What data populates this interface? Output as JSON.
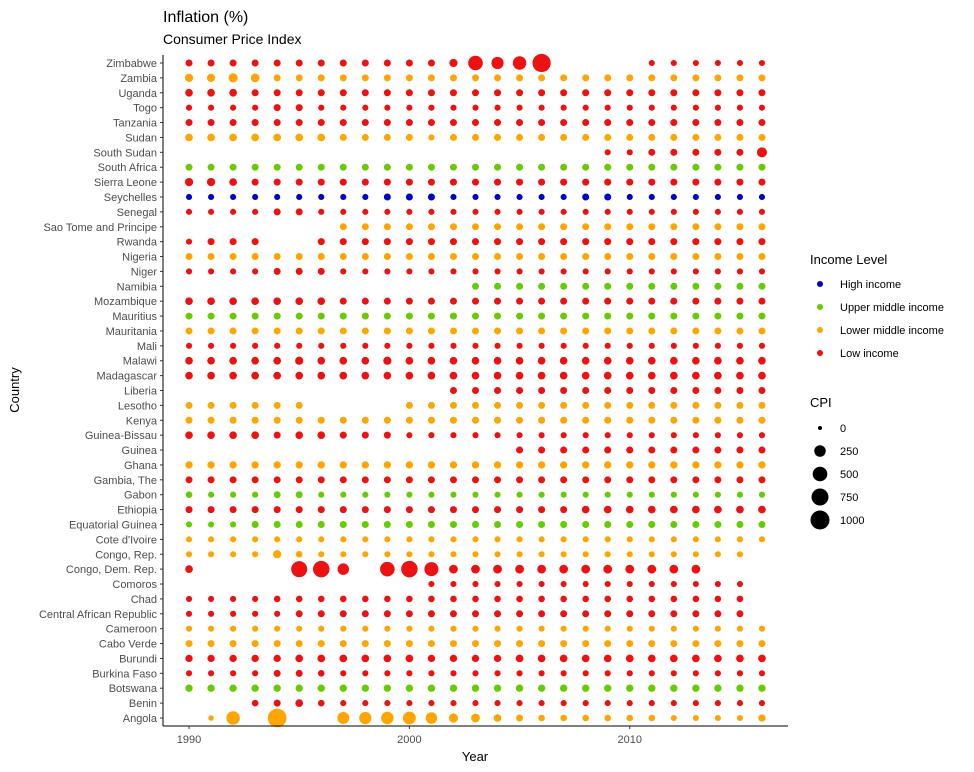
{
  "chart_data": {
    "type": "scatter",
    "title": "Inflation (%)",
    "subtitle": "Consumer Price Index",
    "xlabel": "Year",
    "ylabel": "Country",
    "xlim": [
      1989,
      2017
    ],
    "x_ticks": [
      1990,
      2000,
      2010
    ],
    "years": [
      1990,
      1991,
      1992,
      1993,
      1994,
      1995,
      1996,
      1997,
      1998,
      1999,
      2000,
      2001,
      2002,
      2003,
      2004,
      2005,
      2006,
      2007,
      2008,
      2009,
      2010,
      2011,
      2012,
      2013,
      2014,
      2015,
      2016
    ],
    "countries": [
      "Angola",
      "Benin",
      "Botswana",
      "Burkina Faso",
      "Burundi",
      "Cabo Verde",
      "Cameroon",
      "Central African Republic",
      "Chad",
      "Comoros",
      "Congo, Dem. Rep.",
      "Congo, Rep.",
      "Cote d'Ivoire",
      "Equatorial Guinea",
      "Ethiopia",
      "Gabon",
      "Gambia, The",
      "Ghana",
      "Guinea",
      "Guinea-Bissau",
      "Kenya",
      "Lesotho",
      "Liberia",
      "Madagascar",
      "Malawi",
      "Mali",
      "Mauritania",
      "Mauritius",
      "Mozambique",
      "Namibia",
      "Niger",
      "Nigeria",
      "Rwanda",
      "Sao Tome and Principe",
      "Senegal",
      "Seychelles",
      "Sierra Leone",
      "South Africa",
      "South Sudan",
      "Sudan",
      "Tanzania",
      "Togo",
      "Uganda",
      "Zambia",
      "Zimbabwe"
    ],
    "income_colors": {
      "High income": "#0000cc",
      "Upper middle income": "#66cc00",
      "Lower middle income": "#ffa500",
      "Low income": "#ee1111"
    },
    "income_by_country": {
      "Angola": "Lower middle income",
      "Benin": "Low income",
      "Botswana": "Upper middle income",
      "Burkina Faso": "Low income",
      "Burundi": "Low income",
      "Cabo Verde": "Lower middle income",
      "Cameroon": "Lower middle income",
      "Central African Republic": "Low income",
      "Chad": "Low income",
      "Comoros": "Low income",
      "Congo, Dem. Rep.": "Low income",
      "Congo, Rep.": "Lower middle income",
      "Cote d'Ivoire": "Lower middle income",
      "Equatorial Guinea": "Upper middle income",
      "Ethiopia": "Low income",
      "Gabon": "Upper middle income",
      "Gambia, The": "Low income",
      "Ghana": "Lower middle income",
      "Guinea": "Low income",
      "Guinea-Bissau": "Low income",
      "Kenya": "Lower middle income",
      "Lesotho": "Lower middle income",
      "Liberia": "Low income",
      "Madagascar": "Low income",
      "Malawi": "Low income",
      "Mali": "Low income",
      "Mauritania": "Lower middle income",
      "Mauritius": "Upper middle income",
      "Mozambique": "Low income",
      "Namibia": "Upper middle income",
      "Niger": "Low income",
      "Nigeria": "Lower middle income",
      "Rwanda": "Low income",
      "Sao Tome and Principe": "Lower middle income",
      "Senegal": "Low income",
      "Seychelles": "High income",
      "Sierra Leone": "Low income",
      "South Africa": "Upper middle income",
      "South Sudan": "Low income",
      "Sudan": "Lower middle income",
      "Tanzania": "Low income",
      "Togo": "Low income",
      "Uganda": "Low income",
      "Zambia": "Lower middle income",
      "Zimbabwe": "Low income"
    },
    "cpi_series": {
      "Angola": [
        null,
        10,
        400,
        null,
        950,
        null,
        null,
        280,
        300,
        320,
        350,
        250,
        120,
        100,
        60,
        40,
        30,
        30,
        30,
        30,
        30,
        30,
        20,
        20,
        20,
        20,
        50
      ],
      "Benin": [
        null,
        null,
        null,
        30,
        40,
        60,
        30,
        20,
        20,
        20,
        20,
        20,
        20,
        20,
        20,
        20,
        20,
        20,
        20,
        20,
        20,
        20,
        20,
        20,
        20,
        20,
        20
      ],
      "Botswana": [
        50,
        50,
        50,
        50,
        50,
        50,
        50,
        50,
        50,
        50,
        50,
        50,
        50,
        50,
        50,
        50,
        50,
        50,
        50,
        50,
        50,
        50,
        50,
        50,
        50,
        50,
        50
      ],
      "Burkina Faso": [
        20,
        20,
        20,
        20,
        40,
        40,
        30,
        20,
        20,
        20,
        20,
        20,
        20,
        20,
        20,
        20,
        20,
        20,
        20,
        20,
        20,
        20,
        20,
        20,
        20,
        20,
        20
      ],
      "Burundi": [
        50,
        50,
        50,
        50,
        50,
        60,
        60,
        60,
        60,
        60,
        60,
        50,
        50,
        50,
        50,
        60,
        60,
        60,
        60,
        60,
        60,
        60,
        60,
        60,
        60,
        60,
        60
      ],
      "Cabo Verde": [
        40,
        40,
        40,
        40,
        40,
        40,
        40,
        40,
        40,
        40,
        40,
        40,
        40,
        40,
        40,
        40,
        40,
        40,
        40,
        40,
        40,
        40,
        40,
        40,
        40,
        40,
        40
      ],
      "Cameroon": [
        20,
        20,
        20,
        20,
        20,
        20,
        20,
        20,
        20,
        20,
        20,
        20,
        20,
        20,
        20,
        20,
        20,
        20,
        20,
        20,
        20,
        20,
        20,
        20,
        20,
        20,
        20
      ],
      "Central African Republic": [
        20,
        20,
        20,
        20,
        20,
        40,
        40,
        40,
        40,
        40,
        40,
        40,
        40,
        40,
        40,
        40,
        40,
        40,
        40,
        40,
        40,
        40,
        40,
        40,
        40,
        40,
        null
      ],
      "Chad": [
        20,
        20,
        20,
        20,
        30,
        30,
        30,
        30,
        30,
        30,
        30,
        30,
        30,
        30,
        30,
        30,
        30,
        30,
        30,
        30,
        30,
        30,
        30,
        30,
        30,
        30,
        null
      ],
      "Comoros": [
        null,
        null,
        null,
        null,
        null,
        null,
        null,
        null,
        null,
        null,
        null,
        20,
        20,
        20,
        20,
        20,
        20,
        20,
        20,
        20,
        20,
        20,
        20,
        20,
        20,
        20,
        null
      ],
      "Congo, Dem. Rep.": [
        60,
        null,
        null,
        null,
        null,
        650,
        700,
        250,
        null,
        500,
        700,
        450,
        100,
        100,
        100,
        100,
        100,
        100,
        100,
        100,
        100,
        100,
        100,
        100,
        null,
        null,
        null
      ],
      "Congo, Rep.": [
        20,
        20,
        20,
        20,
        80,
        30,
        20,
        20,
        20,
        20,
        20,
        20,
        20,
        20,
        20,
        20,
        20,
        20,
        20,
        20,
        20,
        20,
        20,
        20,
        20,
        20,
        null
      ],
      "Cote d'Ivoire": [
        20,
        20,
        20,
        20,
        20,
        20,
        20,
        20,
        20,
        20,
        20,
        20,
        20,
        20,
        20,
        20,
        20,
        20,
        20,
        20,
        20,
        20,
        20,
        20,
        20,
        20,
        20
      ],
      "Equatorial Guinea": [
        20,
        20,
        20,
        40,
        40,
        40,
        40,
        40,
        40,
        40,
        40,
        40,
        40,
        40,
        40,
        40,
        40,
        40,
        40,
        40,
        40,
        40,
        40,
        40,
        40,
        40,
        40
      ],
      "Ethiopia": [
        40,
        40,
        40,
        40,
        40,
        40,
        40,
        40,
        40,
        40,
        40,
        40,
        40,
        40,
        40,
        40,
        40,
        40,
        60,
        60,
        60,
        60,
        60,
        60,
        60,
        60,
        60
      ],
      "Gabon": [
        30,
        20,
        20,
        20,
        40,
        40,
        20,
        20,
        20,
        20,
        20,
        20,
        20,
        20,
        20,
        20,
        20,
        20,
        20,
        20,
        20,
        20,
        20,
        20,
        20,
        20,
        20
      ],
      "Gambia, The": [
        40,
        40,
        40,
        40,
        40,
        40,
        40,
        40,
        40,
        40,
        40,
        40,
        40,
        40,
        40,
        40,
        40,
        40,
        40,
        40,
        40,
        40,
        40,
        40,
        40,
        40,
        40
      ],
      "Ghana": [
        50,
        50,
        50,
        50,
        50,
        50,
        50,
        50,
        50,
        50,
        50,
        50,
        50,
        50,
        50,
        50,
        50,
        50,
        50,
        50,
        50,
        50,
        50,
        50,
        50,
        50,
        50
      ],
      "Guinea": [
        null,
        null,
        null,
        null,
        null,
        null,
        null,
        null,
        null,
        null,
        null,
        null,
        null,
        null,
        null,
        40,
        40,
        40,
        40,
        40,
        40,
        40,
        40,
        40,
        40,
        40,
        40
      ],
      "Guinea-Bissau": [
        60,
        60,
        60,
        60,
        40,
        60,
        60,
        40,
        40,
        40,
        20,
        20,
        20,
        20,
        20,
        20,
        20,
        20,
        20,
        20,
        20,
        20,
        20,
        20,
        20,
        20,
        20
      ],
      "Kenya": [
        40,
        40,
        40,
        40,
        40,
        40,
        40,
        40,
        40,
        40,
        40,
        40,
        40,
        40,
        40,
        40,
        40,
        40,
        40,
        40,
        40,
        40,
        40,
        40,
        40,
        40,
        40
      ],
      "Lesotho": [
        40,
        40,
        40,
        40,
        40,
        40,
        null,
        null,
        null,
        null,
        40,
        40,
        40,
        40,
        40,
        40,
        40,
        40,
        40,
        40,
        40,
        40,
        40,
        40,
        40,
        40,
        40
      ],
      "Liberia": [
        null,
        null,
        null,
        null,
        null,
        null,
        null,
        null,
        null,
        null,
        null,
        null,
        40,
        40,
        40,
        40,
        40,
        40,
        40,
        40,
        40,
        40,
        40,
        40,
        40,
        40,
        40
      ],
      "Madagascar": [
        60,
        60,
        60,
        60,
        60,
        60,
        60,
        60,
        60,
        60,
        60,
        60,
        60,
        60,
        60,
        60,
        60,
        60,
        60,
        60,
        60,
        60,
        60,
        60,
        60,
        60,
        60
      ],
      "Malawi": [
        60,
        60,
        60,
        60,
        60,
        80,
        60,
        60,
        60,
        80,
        60,
        60,
        60,
        60,
        60,
        60,
        60,
        60,
        60,
        60,
        60,
        60,
        60,
        60,
        60,
        60,
        60
      ],
      "Mali": [
        20,
        20,
        20,
        20,
        20,
        20,
        20,
        20,
        20,
        20,
        20,
        20,
        20,
        20,
        20,
        20,
        20,
        20,
        20,
        20,
        20,
        20,
        20,
        20,
        20,
        20,
        20
      ],
      "Mauritania": [
        40,
        40,
        40,
        40,
        40,
        40,
        40,
        40,
        40,
        40,
        40,
        40,
        40,
        40,
        40,
        40,
        40,
        40,
        40,
        40,
        40,
        40,
        40,
        40,
        40,
        40,
        40
      ],
      "Mauritius": [
        40,
        40,
        40,
        40,
        40,
        40,
        40,
        40,
        40,
        40,
        40,
        40,
        40,
        40,
        40,
        40,
        40,
        40,
        40,
        40,
        40,
        40,
        40,
        40,
        40,
        40,
        40
      ],
      "Mozambique": [
        60,
        60,
        60,
        60,
        60,
        60,
        60,
        40,
        40,
        40,
        40,
        40,
        40,
        40,
        40,
        40,
        40,
        40,
        40,
        40,
        40,
        40,
        40,
        40,
        40,
        40,
        40
      ],
      "Namibia": [
        null,
        null,
        null,
        null,
        null,
        null,
        null,
        null,
        null,
        null,
        null,
        null,
        null,
        40,
        40,
        40,
        40,
        40,
        40,
        40,
        40,
        40,
        40,
        40,
        40,
        40,
        40
      ],
      "Niger": [
        20,
        20,
        20,
        20,
        40,
        40,
        40,
        20,
        20,
        20,
        20,
        20,
        20,
        20,
        20,
        20,
        20,
        20,
        20,
        20,
        20,
        20,
        20,
        20,
        20,
        20,
        20
      ],
      "Nigeria": [
        40,
        40,
        40,
        40,
        40,
        40,
        40,
        40,
        40,
        40,
        40,
        40,
        40,
        40,
        40,
        40,
        40,
        40,
        40,
        40,
        40,
        40,
        40,
        40,
        40,
        40,
        40
      ],
      "Rwanda": [
        20,
        40,
        40,
        40,
        null,
        null,
        40,
        40,
        40,
        40,
        40,
        40,
        40,
        40,
        40,
        40,
        40,
        40,
        40,
        40,
        40,
        40,
        40,
        40,
        40,
        40,
        40
      ],
      "Sao Tome and Principe": [
        null,
        null,
        null,
        null,
        null,
        null,
        null,
        40,
        40,
        40,
        40,
        40,
        40,
        40,
        40,
        40,
        40,
        40,
        40,
        40,
        40,
        40,
        40,
        40,
        40,
        40,
        40
      ],
      "Senegal": [
        20,
        20,
        20,
        20,
        40,
        40,
        20,
        20,
        20,
        20,
        20,
        20,
        20,
        20,
        20,
        20,
        20,
        20,
        20,
        20,
        20,
        20,
        20,
        20,
        20,
        20,
        20
      ],
      "Seychelles": [
        20,
        20,
        20,
        20,
        20,
        20,
        20,
        20,
        20,
        40,
        40,
        40,
        20,
        20,
        20,
        20,
        20,
        20,
        40,
        40,
        20,
        20,
        20,
        20,
        20,
        20,
        20
      ],
      "Sierra Leone": [
        80,
        80,
        60,
        40,
        40,
        40,
        40,
        40,
        40,
        40,
        40,
        40,
        40,
        40,
        40,
        40,
        40,
        40,
        40,
        40,
        40,
        40,
        40,
        40,
        40,
        40,
        40
      ],
      "South Africa": [
        40,
        40,
        40,
        40,
        40,
        40,
        40,
        40,
        40,
        40,
        40,
        40,
        40,
        40,
        40,
        40,
        40,
        40,
        40,
        40,
        40,
        40,
        40,
        40,
        40,
        40,
        40
      ],
      "South Sudan": [
        null,
        null,
        null,
        null,
        null,
        null,
        null,
        null,
        null,
        null,
        null,
        null,
        null,
        null,
        null,
        null,
        null,
        null,
        null,
        20,
        20,
        40,
        40,
        40,
        40,
        40,
        160
      ],
      "Sudan": [
        60,
        60,
        60,
        60,
        60,
        60,
        60,
        40,
        40,
        40,
        40,
        20,
        40,
        40,
        40,
        40,
        40,
        40,
        40,
        40,
        40,
        40,
        40,
        40,
        40,
        40,
        40
      ],
      "Tanzania": [
        40,
        40,
        40,
        40,
        40,
        40,
        40,
        40,
        40,
        40,
        40,
        40,
        40,
        40,
        40,
        40,
        40,
        40,
        40,
        40,
        40,
        40,
        40,
        40,
        40,
        40,
        40
      ],
      "Togo": [
        20,
        20,
        20,
        20,
        40,
        40,
        20,
        20,
        20,
        20,
        20,
        20,
        20,
        20,
        20,
        20,
        20,
        20,
        20,
        20,
        20,
        20,
        20,
        20,
        20,
        20,
        20
      ],
      "Uganda": [
        60,
        60,
        60,
        40,
        40,
        40,
        40,
        40,
        40,
        40,
        40,
        40,
        40,
        40,
        40,
        40,
        40,
        40,
        40,
        40,
        40,
        40,
        40,
        40,
        40,
        40,
        40
      ],
      "Zambia": [
        80,
        80,
        120,
        100,
        40,
        40,
        40,
        40,
        40,
        40,
        40,
        40,
        40,
        40,
        40,
        40,
        40,
        40,
        40,
        40,
        40,
        40,
        40,
        40,
        40,
        40,
        40
      ],
      "Zimbabwe": [
        40,
        40,
        40,
        40,
        40,
        40,
        40,
        40,
        40,
        40,
        40,
        40,
        80,
        500,
        300,
        400,
        900,
        null,
        null,
        null,
        null,
        20,
        20,
        20,
        20,
        20,
        20
      ]
    },
    "legend": {
      "income_title": "Income Level",
      "income_items": [
        "High income",
        "Upper middle income",
        "Lower middle income",
        "Low income"
      ],
      "cpi_title": "CPI",
      "cpi_items": [
        0,
        250,
        500,
        750,
        1000
      ],
      "placement": "right"
    }
  }
}
